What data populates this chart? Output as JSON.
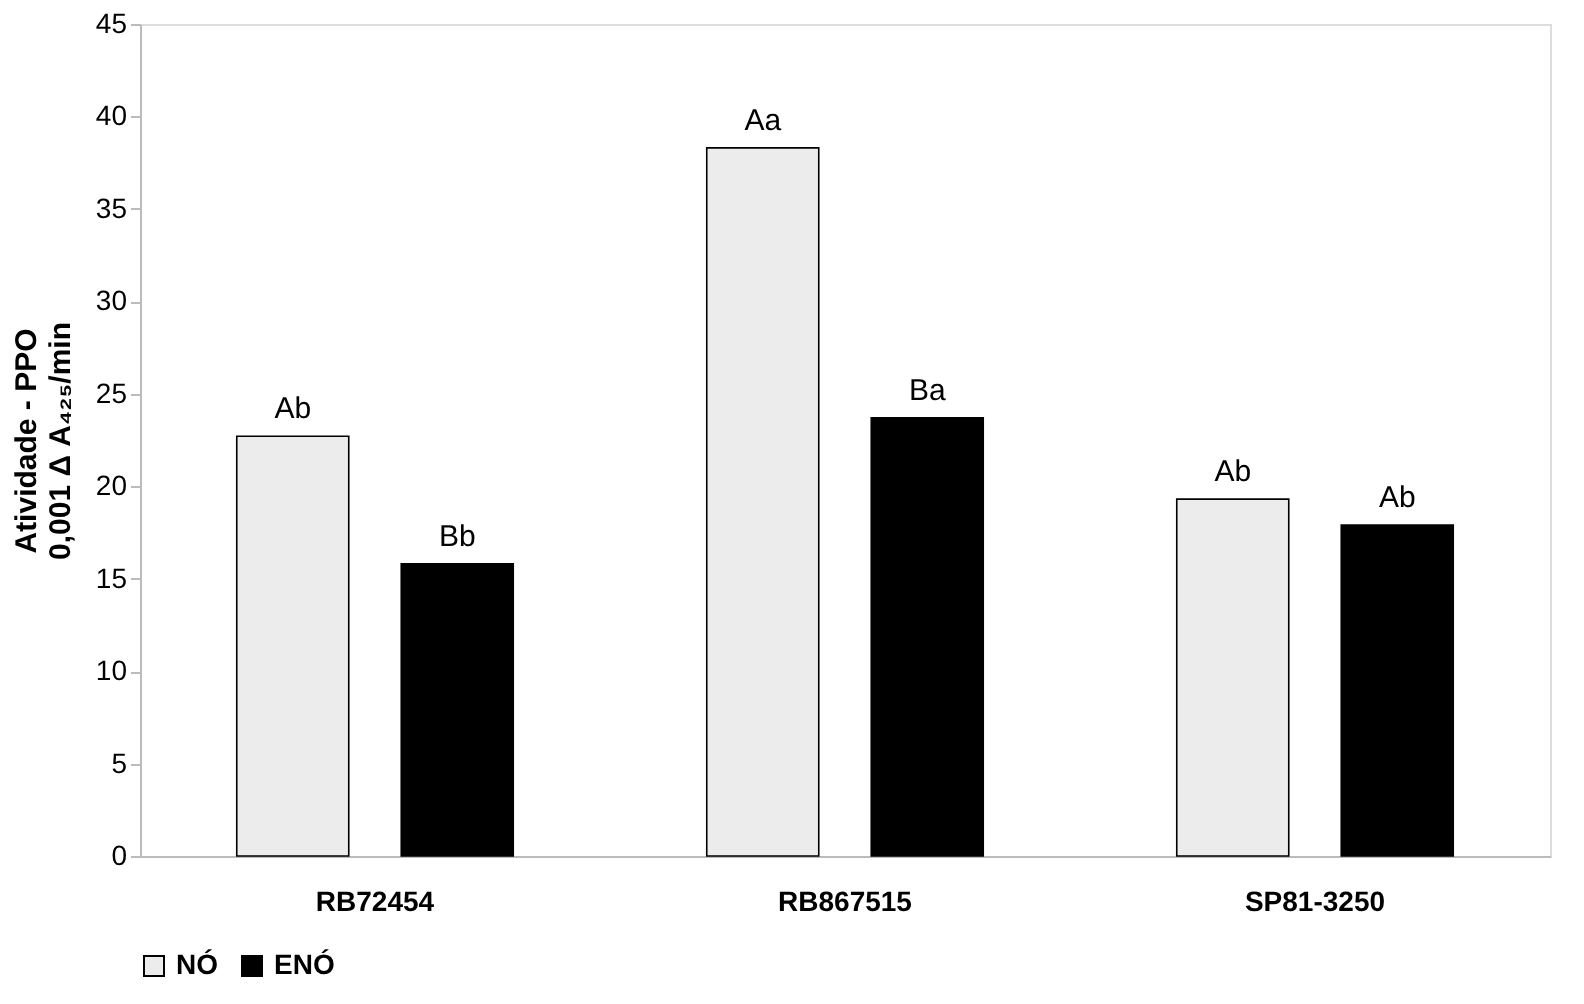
{
  "chart_data": {
    "type": "bar",
    "ylabel": "Atividade - PPO\n0,001 Δ A₄₂₅/min",
    "categories": [
      "RB72454",
      "RB867515",
      "SP81-3250"
    ],
    "series": [
      {
        "name": "NÓ",
        "color": "#ececec",
        "values": [
          22.7,
          38.3,
          19.3
        ],
        "value_labels": [
          "Ab",
          "Aa",
          "Ab"
        ]
      },
      {
        "name": "ENÓ",
        "color": "#000000",
        "values": [
          15.8,
          23.7,
          17.9
        ],
        "value_labels": [
          "Bb",
          "Ba",
          "Ab"
        ]
      }
    ],
    "ylim": [
      0,
      45
    ],
    "yticks": [
      0,
      5,
      10,
      15,
      20,
      25,
      30,
      35,
      40,
      45
    ],
    "grid": false,
    "legend": "bottom"
  }
}
